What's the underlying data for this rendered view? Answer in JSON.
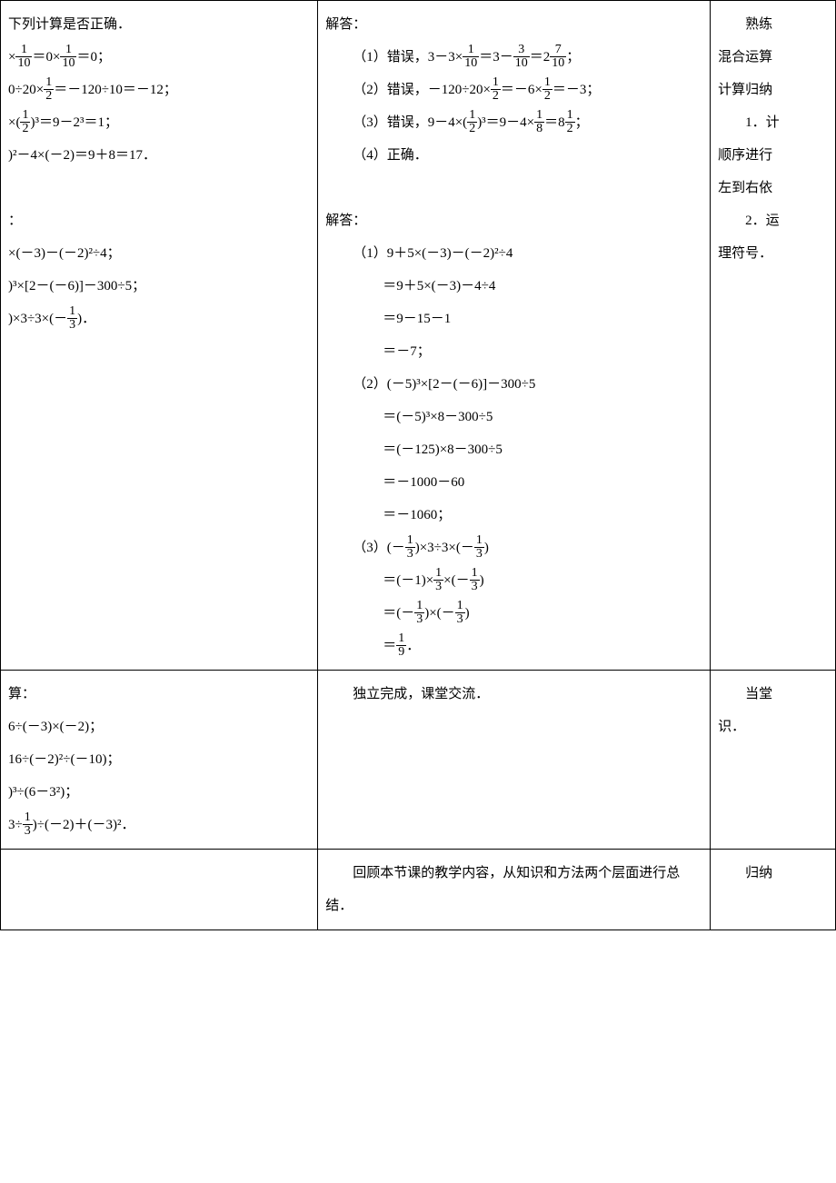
{
  "col1": {
    "r1": {
      "p0": "下列计算是否正确．",
      "p1a": "×",
      "p1b": "＝0×",
      "p1c": "＝0；",
      "p2a": "0÷20×",
      "p2b": "＝－120÷10＝－12；",
      "p3a": "×(",
      "p3b": ")³＝9－2³＝1；",
      "p4": ")²－4×(－2)＝9＋8＝17．",
      "p5": "：",
      "p6": "×(－3)－(－2)²÷4；",
      "p7": ")³×[2－(－6)]－300÷5；",
      "p8a": ")×3÷3×(－",
      "p8b": ")．"
    },
    "r2": {
      "p0": "算：",
      "p1": "6÷(－3)×(－2)；",
      "p2": "16÷(－2)²÷(－10)；",
      "p3": ")³÷(6－3²)；",
      "p4a": "3÷",
      "p4b": ")÷(－2)＋(－3)²．"
    }
  },
  "col2": {
    "r1": {
      "h1": "解答：",
      "a1a": "（1）错误，3－3×",
      "a1b": "＝3－",
      "a1c": "＝2",
      "a1d": "；",
      "a2a": "（2）错误，－120÷20×",
      "a2b": "＝－6×",
      "a2c": "＝－3；",
      "a3a": "（3）错误，9－4×(",
      "a3b": ")³＝9－4×",
      "a3c": "＝8",
      "a3d": "；",
      "a4": "（4）正确．",
      "h2": "解答：",
      "b1": "（1）9＋5×(－3)－(－2)²÷4",
      "b2": "＝9＋5×(－3)－4÷4",
      "b3": "＝9－15－1",
      "b4": "＝－7；",
      "c1": "（2）(－5)³×[2－(－6)]－300÷5",
      "c2": "＝(－5)³×8－300÷5",
      "c3": "＝(－125)×8－300÷5",
      "c4": "＝－1000－60",
      "c5": "＝－1060；",
      "d1a": "（3）(－",
      "d1b": ")×3÷3×(－",
      "d1c": ")",
      "d2a": "＝(－1)×",
      "d2b": "×(－",
      "d2c": ")",
      "d3a": "＝(－",
      "d3b": ")×(－",
      "d3c": ")",
      "d4a": "＝",
      "d4b": "．"
    },
    "r2": "独立完成，课堂交流．",
    "r3": "回顾本节课的教学内容，从知识和方法两个层面进行总结．"
  },
  "col3": {
    "r1": {
      "p1": "熟练",
      "p2": "混合运算",
      "p3": "计算归纳",
      "p4": "1．计",
      "p5": "顺序进行",
      "p6": "左到右依",
      "p7": "2．运",
      "p8": "理符号．"
    },
    "r2a": "当堂",
    "r2b": "识．",
    "r3": "归纳"
  },
  "fracs": {
    "f1_10": {
      "n": "1",
      "d": "10"
    },
    "f3_10": {
      "n": "3",
      "d": "10"
    },
    "f7_10": {
      "n": "7",
      "d": "10"
    },
    "f1_2": {
      "n": "1",
      "d": "2"
    },
    "f1_3": {
      "n": "1",
      "d": "3"
    },
    "f1_8": {
      "n": "1",
      "d": "8"
    },
    "f1_9": {
      "n": "1",
      "d": "9"
    }
  }
}
